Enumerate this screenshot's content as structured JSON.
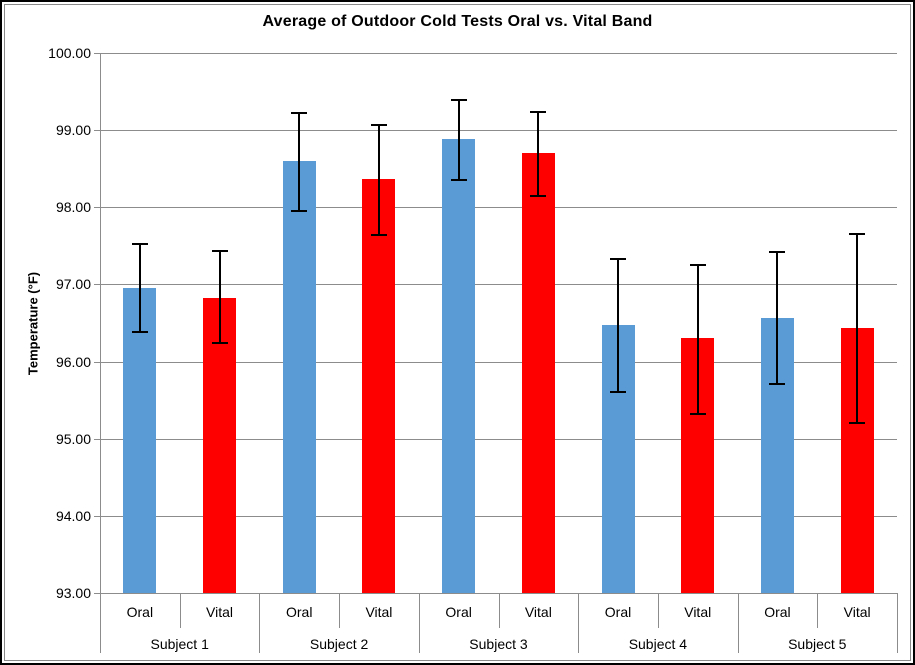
{
  "window": {
    "background": "#ffffff",
    "border_outer_color": "#000000",
    "border_inner_color": "#898989"
  },
  "chart_data": {
    "type": "bar",
    "title": "Average of Outdoor Cold Tests Oral vs. Vital Band",
    "xlabel": "",
    "ylabel": "Temperature (°F)",
    "ylim": [
      93,
      100
    ],
    "grid": true,
    "legend_position": "none",
    "error_bars": true,
    "yticks": [
      {
        "value": 100,
        "label": "100.00"
      },
      {
        "value": 99,
        "label": "99.00"
      },
      {
        "value": 98,
        "label": "98.00"
      },
      {
        "value": 97,
        "label": "97.00"
      },
      {
        "value": 96,
        "label": "96.00"
      },
      {
        "value": 95,
        "label": "95.00"
      },
      {
        "value": 94,
        "label": "94.00"
      },
      {
        "value": 93,
        "label": "93.00"
      }
    ],
    "series_labels": [
      "Oral",
      "Vital"
    ],
    "series_colors": {
      "Oral": "#5B9BD5",
      "Vital": "#FE0000"
    },
    "groups": [
      {
        "label": "Subject 1",
        "bars": [
          {
            "series": "Oral",
            "value": 96.96,
            "error_low": 96.38,
            "error_high": 97.53
          },
          {
            "series": "Vital",
            "value": 96.83,
            "error_low": 96.24,
            "error_high": 97.43
          }
        ]
      },
      {
        "label": "Subject 2",
        "bars": [
          {
            "series": "Oral",
            "value": 98.6,
            "error_low": 97.95,
            "error_high": 99.22
          },
          {
            "series": "Vital",
            "value": 98.37,
            "error_low": 97.64,
            "error_high": 99.07
          }
        ]
      },
      {
        "label": "Subject 3",
        "bars": [
          {
            "series": "Oral",
            "value": 98.88,
            "error_low": 98.36,
            "error_high": 99.39
          },
          {
            "series": "Vital",
            "value": 98.7,
            "error_low": 98.15,
            "error_high": 99.23
          }
        ]
      },
      {
        "label": "Subject 4",
        "bars": [
          {
            "series": "Oral",
            "value": 96.48,
            "error_low": 95.6,
            "error_high": 97.33
          },
          {
            "series": "Vital",
            "value": 96.3,
            "error_low": 95.32,
            "error_high": 97.25
          }
        ]
      },
      {
        "label": "Subject 5",
        "bars": [
          {
            "series": "Oral",
            "value": 96.57,
            "error_low": 95.71,
            "error_high": 97.42
          },
          {
            "series": "Vital",
            "value": 96.43,
            "error_low": 95.21,
            "error_high": 97.65
          }
        ]
      }
    ],
    "style_colors": {
      "gridline": "#8C8C8C",
      "axis_line": "#8C8C8C",
      "divider": "#8C8C8C",
      "error_bar": "#000000",
      "text": "#000000"
    }
  }
}
